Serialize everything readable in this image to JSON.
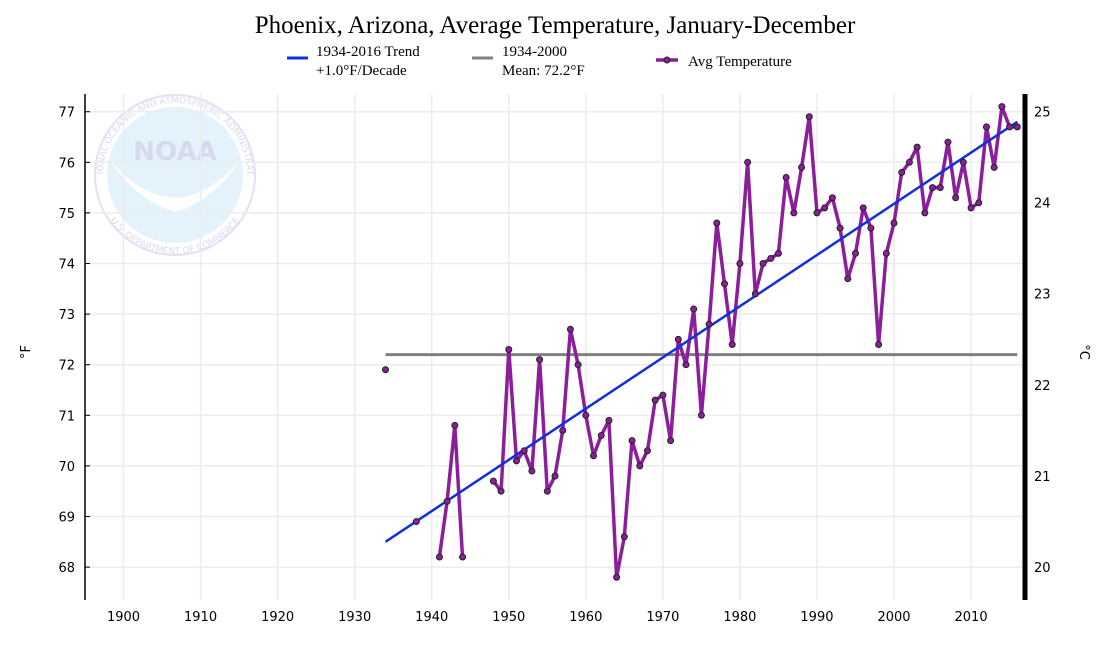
{
  "chart_data": {
    "type": "line",
    "title": "Phoenix, Arizona, Average Temperature, January-December",
    "ylabel": "°F",
    "y2label": "°C",
    "xlim": [
      1895,
      2017
    ],
    "ylim": [
      67.35,
      77.35
    ],
    "y2lim": [
      19.64,
      25.19
    ],
    "x_ticks": [
      1900,
      1910,
      1920,
      1930,
      1940,
      1950,
      1960,
      1970,
      1980,
      1990,
      2000,
      2010
    ],
    "y_ticks": [
      68,
      69,
      70,
      71,
      72,
      73,
      74,
      75,
      76,
      77
    ],
    "y2_ticks": [
      20,
      21,
      22,
      23,
      24,
      25
    ],
    "grid": true,
    "legend_position": "top",
    "legend": {
      "trend": [
        "1934-2016 Trend",
        "+1.0°F/Decade"
      ],
      "mean": [
        "1934-2000",
        "Mean: 72.2°F"
      ],
      "avg": "Avg Temperature"
    },
    "series": [
      {
        "name": "Avg Temperature",
        "color": "#8b1e9a",
        "points": [
          {
            "x": 1934,
            "y": 71.9
          },
          {
            "x": 1938,
            "y": 68.9
          },
          {
            "x": 1941,
            "y": 68.2
          },
          {
            "x": 1942,
            "y": 69.3
          },
          {
            "x": 1943,
            "y": 70.8
          },
          {
            "x": 1944,
            "y": 68.2
          },
          {
            "x": 1948,
            "y": 69.7
          },
          {
            "x": 1949,
            "y": 69.5
          },
          {
            "x": 1950,
            "y": 72.3
          },
          {
            "x": 1951,
            "y": 70.1
          },
          {
            "x": 1952,
            "y": 70.3
          },
          {
            "x": 1953,
            "y": 69.9
          },
          {
            "x": 1954,
            "y": 72.1
          },
          {
            "x": 1955,
            "y": 69.5
          },
          {
            "x": 1956,
            "y": 69.8
          },
          {
            "x": 1957,
            "y": 70.7
          },
          {
            "x": 1958,
            "y": 72.7
          },
          {
            "x": 1959,
            "y": 72.0
          },
          {
            "x": 1960,
            "y": 71.0
          },
          {
            "x": 1961,
            "y": 70.2
          },
          {
            "x": 1962,
            "y": 70.6
          },
          {
            "x": 1963,
            "y": 70.9
          },
          {
            "x": 1964,
            "y": 67.8
          },
          {
            "x": 1965,
            "y": 68.6
          },
          {
            "x": 1966,
            "y": 70.5
          },
          {
            "x": 1967,
            "y": 70.0
          },
          {
            "x": 1968,
            "y": 70.3
          },
          {
            "x": 1969,
            "y": 71.3
          },
          {
            "x": 1970,
            "y": 71.4
          },
          {
            "x": 1971,
            "y": 70.5
          },
          {
            "x": 1972,
            "y": 72.5
          },
          {
            "x": 1973,
            "y": 72.0
          },
          {
            "x": 1974,
            "y": 73.1
          },
          {
            "x": 1975,
            "y": 71.0
          },
          {
            "x": 1976,
            "y": 72.8
          },
          {
            "x": 1977,
            "y": 74.8
          },
          {
            "x": 1978,
            "y": 73.6
          },
          {
            "x": 1979,
            "y": 72.4
          },
          {
            "x": 1980,
            "y": 74.0
          },
          {
            "x": 1981,
            "y": 76.0
          },
          {
            "x": 1982,
            "y": 73.4
          },
          {
            "x": 1983,
            "y": 74.0
          },
          {
            "x": 1984,
            "y": 74.1
          },
          {
            "x": 1985,
            "y": 74.2
          },
          {
            "x": 1986,
            "y": 75.7
          },
          {
            "x": 1987,
            "y": 75.0
          },
          {
            "x": 1988,
            "y": 75.9
          },
          {
            "x": 1989,
            "y": 76.9
          },
          {
            "x": 1990,
            "y": 75.0
          },
          {
            "x": 1991,
            "y": 75.1
          },
          {
            "x": 1992,
            "y": 75.3
          },
          {
            "x": 1993,
            "y": 74.7
          },
          {
            "x": 1994,
            "y": 73.7
          },
          {
            "x": 1995,
            "y": 74.2
          },
          {
            "x": 1996,
            "y": 75.1
          },
          {
            "x": 1997,
            "y": 74.7
          },
          {
            "x": 1998,
            "y": 72.4
          },
          {
            "x": 1999,
            "y": 74.2
          },
          {
            "x": 2000,
            "y": 74.8
          },
          {
            "x": 2001,
            "y": 75.8
          },
          {
            "x": 2002,
            "y": 76.0
          },
          {
            "x": 2003,
            "y": 76.3
          },
          {
            "x": 2004,
            "y": 75.0
          },
          {
            "x": 2005,
            "y": 75.5
          },
          {
            "x": 2006,
            "y": 75.5
          },
          {
            "x": 2007,
            "y": 76.4
          },
          {
            "x": 2008,
            "y": 75.3
          },
          {
            "x": 2009,
            "y": 76.0
          },
          {
            "x": 2010,
            "y": 75.1
          },
          {
            "x": 2011,
            "y": 75.2
          },
          {
            "x": 2012,
            "y": 76.7
          },
          {
            "x": 2013,
            "y": 75.9
          },
          {
            "x": 2014,
            "y": 77.1
          },
          {
            "x": 2015,
            "y": 76.7
          },
          {
            "x": 2016,
            "y": 76.7
          }
        ]
      },
      {
        "name": "1934-2016 Trend",
        "color": "#1030e0",
        "points": [
          {
            "x": 1934,
            "y": 68.5
          },
          {
            "x": 2016,
            "y": 76.8
          }
        ]
      },
      {
        "name": "1934-2000",
        "color": "#808080",
        "points": [
          {
            "x": 1934,
            "y": 72.2
          },
          {
            "x": 2016,
            "y": 72.2
          }
        ]
      }
    ],
    "watermark": {
      "logo_text": "NOAA",
      "ring_text": "NATIONAL OCEANIC AND ATMOSPHERIC ADMINISTRATION",
      "ring_text_bottom": "U.S. DEPARTMENT OF COMMERCE"
    }
  }
}
